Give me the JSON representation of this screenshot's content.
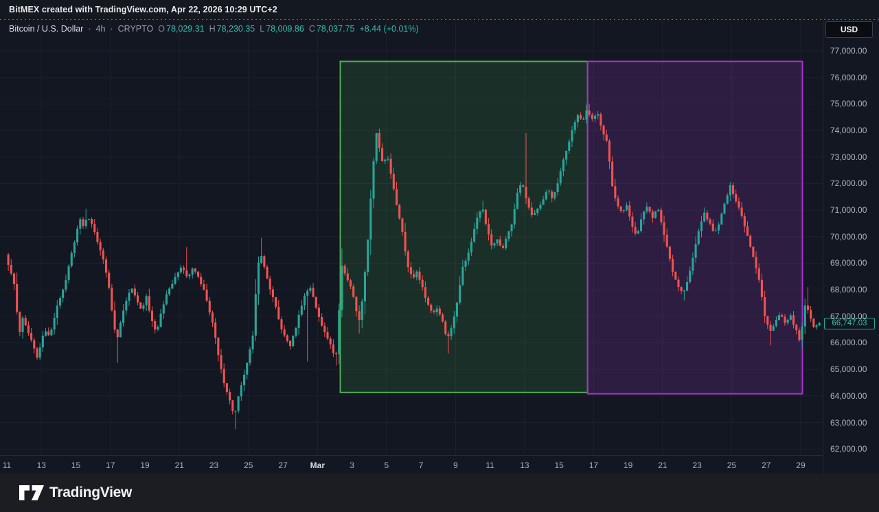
{
  "top_bar": {
    "attribution": "BitMEX created with TradingView.com, Apr 22, 2026 10:29 UTC+2"
  },
  "legend": {
    "symbol": "Bitcoin / U.S. Dollar",
    "sep1": "·",
    "interval": "4h",
    "sep2": "·",
    "market": "CRYPTO",
    "ohlc": {
      "o_label": "O",
      "o": "78,029.31",
      "h_label": "H",
      "h": "78,230.35",
      "l_label": "L",
      "l": "78,009.86",
      "c_label": "C",
      "c": "78,037.75",
      "change": "+8.44 (+0.01%)"
    }
  },
  "price_axis": {
    "currency": "USD",
    "last_price_label": "66,747.03",
    "tick_values": [
      77000,
      76000,
      75000,
      74000,
      73000,
      72000,
      71000,
      70000,
      69000,
      68000,
      67000,
      66000,
      65000,
      64000,
      63000,
      62000
    ],
    "tick_labels": [
      "77,000.00",
      "76,000.00",
      "75,000.00",
      "74,000.00",
      "73,000.00",
      "72,000.00",
      "71,000.00",
      "70,000.00",
      "69,000.00",
      "68,000.00",
      "67,000.00",
      "66,000.00",
      "65,000.00",
      "64,000.00",
      "63,000.00",
      "62,000.00"
    ]
  },
  "time_axis": {
    "labels": [
      {
        "text": "11",
        "day": 0
      },
      {
        "text": "13",
        "day": 2
      },
      {
        "text": "15",
        "day": 4
      },
      {
        "text": "17",
        "day": 6
      },
      {
        "text": "19",
        "day": 8
      },
      {
        "text": "21",
        "day": 10
      },
      {
        "text": "23",
        "day": 12
      },
      {
        "text": "25",
        "day": 14
      },
      {
        "text": "27",
        "day": 16
      },
      {
        "text": "Mar",
        "day": 18,
        "bold": true
      },
      {
        "text": "3",
        "day": 20
      },
      {
        "text": "5",
        "day": 22
      },
      {
        "text": "7",
        "day": 24
      },
      {
        "text": "9",
        "day": 26
      },
      {
        "text": "11",
        "day": 28
      },
      {
        "text": "13",
        "day": 30
      },
      {
        "text": "15",
        "day": 32
      },
      {
        "text": "17",
        "day": 34
      },
      {
        "text": "19",
        "day": 36
      },
      {
        "text": "21",
        "day": 38
      },
      {
        "text": "23",
        "day": 40
      },
      {
        "text": "25",
        "day": 42
      },
      {
        "text": "27",
        "day": 44
      },
      {
        "text": "29",
        "day": 46
      }
    ]
  },
  "footer": {
    "brand": "TradingView",
    "logo_icon": "tradingview-logo-icon"
  },
  "chart_data": {
    "type": "candlestick",
    "title": "Bitcoin / U.S. Dollar",
    "exchange": "BitMEX",
    "interval": "4h",
    "market": "CRYPTO",
    "x_axis": {
      "start": "Feb 11",
      "end": "Mar 30",
      "label_every_days": 2
    },
    "y_axis": {
      "tick_min": 62000,
      "tick_max": 77000,
      "tick_step": 1000,
      "visible_min": 61650,
      "visible_max": 77800
    },
    "grid": {
      "horizontal_step": 1000,
      "vertical_step_days": 4
    },
    "last_price": 66747.03,
    "colors": {
      "up": "#26a69a",
      "down": "#ef5350",
      "grid": "#1d212e",
      "background": "#131722",
      "accent": "#26a69a"
    },
    "candles_note": "283 four-hour candles generated deterministically from price_path anchors read off the chart",
    "price_path": [
      [
        0,
        69300
      ],
      [
        0.2,
        68900
      ],
      [
        0.5,
        68200
      ],
      [
        0.8,
        66300
      ],
      [
        1.0,
        66900
      ],
      [
        1.3,
        66400
      ],
      [
        1.6,
        65900
      ],
      [
        1.85,
        65400
      ],
      [
        2.05,
        66000
      ],
      [
        2.3,
        66500
      ],
      [
        2.55,
        66200
      ],
      [
        2.8,
        66900
      ],
      [
        3.1,
        67600
      ],
      [
        3.4,
        68100
      ],
      [
        3.7,
        69000
      ],
      [
        4.0,
        69800
      ],
      [
        4.3,
        70700
      ],
      [
        4.5,
        70400
      ],
      [
        4.75,
        70800
      ],
      [
        5.0,
        70500
      ],
      [
        5.3,
        69900
      ],
      [
        5.6,
        69300
      ],
      [
        5.9,
        68500
      ],
      [
        6.2,
        67100
      ],
      [
        6.45,
        66000
      ],
      [
        6.7,
        66900
      ],
      [
        7.0,
        67600
      ],
      [
        7.3,
        68100
      ],
      [
        7.6,
        67600
      ],
      [
        7.9,
        67200
      ],
      [
        8.15,
        67800
      ],
      [
        8.45,
        66900
      ],
      [
        8.75,
        66400
      ],
      [
        9.05,
        67200
      ],
      [
        9.35,
        67900
      ],
      [
        9.65,
        68200
      ],
      [
        9.95,
        68600
      ],
      [
        10.25,
        68900
      ],
      [
        10.55,
        68400
      ],
      [
        10.85,
        68800
      ],
      [
        11.15,
        68500
      ],
      [
        11.5,
        68000
      ],
      [
        11.8,
        67200
      ],
      [
        12.1,
        66500
      ],
      [
        12.4,
        65300
      ],
      [
        12.7,
        64400
      ],
      [
        13.0,
        63800
      ],
      [
        13.25,
        63200
      ],
      [
        13.55,
        64100
      ],
      [
        13.85,
        64800
      ],
      [
        14.1,
        65600
      ],
      [
        14.35,
        66300
      ],
      [
        14.6,
        68800
      ],
      [
        14.8,
        69400
      ],
      [
        15.05,
        68700
      ],
      [
        15.3,
        68100
      ],
      [
        15.6,
        67500
      ],
      [
        15.9,
        66700
      ],
      [
        16.2,
        66200
      ],
      [
        16.5,
        65900
      ],
      [
        16.8,
        66500
      ],
      [
        17.1,
        67300
      ],
      [
        17.4,
        67900
      ],
      [
        17.7,
        68100
      ],
      [
        18.0,
        67300
      ],
      [
        18.3,
        66700
      ],
      [
        18.6,
        66300
      ],
      [
        18.9,
        65800
      ],
      [
        19.15,
        65400
      ],
      [
        19.5,
        68900
      ],
      [
        19.75,
        68500
      ],
      [
        20.0,
        68100
      ],
      [
        20.2,
        67700
      ],
      [
        20.45,
        66700
      ],
      [
        20.7,
        67700
      ],
      [
        21.0,
        69900
      ],
      [
        21.3,
        72600
      ],
      [
        21.5,
        73900
      ],
      [
        21.7,
        73200
      ],
      [
        21.9,
        72600
      ],
      [
        22.1,
        73200
      ],
      [
        22.4,
        72100
      ],
      [
        22.7,
        71100
      ],
      [
        23.0,
        70200
      ],
      [
        23.3,
        68900
      ],
      [
        23.6,
        68400
      ],
      [
        23.85,
        68700
      ],
      [
        24.15,
        68100
      ],
      [
        24.45,
        67500
      ],
      [
        24.75,
        67100
      ],
      [
        25.0,
        67300
      ],
      [
        25.3,
        66900
      ],
      [
        25.6,
        66100
      ],
      [
        25.9,
        66700
      ],
      [
        26.2,
        67600
      ],
      [
        26.5,
        68900
      ],
      [
        26.8,
        69300
      ],
      [
        27.1,
        70100
      ],
      [
        27.4,
        70900
      ],
      [
        27.65,
        71100
      ],
      [
        27.9,
        70300
      ],
      [
        28.2,
        69600
      ],
      [
        28.5,
        69900
      ],
      [
        28.8,
        69500
      ],
      [
        29.1,
        70100
      ],
      [
        29.4,
        70600
      ],
      [
        29.7,
        71800
      ],
      [
        29.95,
        72000
      ],
      [
        30.2,
        71400
      ],
      [
        30.5,
        70800
      ],
      [
        30.8,
        71000
      ],
      [
        31.1,
        71300
      ],
      [
        31.4,
        71800
      ],
      [
        31.7,
        71400
      ],
      [
        32.0,
        72000
      ],
      [
        32.3,
        72800
      ],
      [
        32.6,
        73400
      ],
      [
        32.9,
        74200
      ],
      [
        33.2,
        74600
      ],
      [
        33.45,
        74300
      ],
      [
        33.7,
        74800
      ],
      [
        34.0,
        74400
      ],
      [
        34.3,
        74700
      ],
      [
        34.6,
        73900
      ],
      [
        34.9,
        73500
      ],
      [
        35.1,
        72100
      ],
      [
        35.4,
        71300
      ],
      [
        35.7,
        70900
      ],
      [
        36.0,
        71200
      ],
      [
        36.3,
        70400
      ],
      [
        36.6,
        70000
      ],
      [
        36.9,
        70800
      ],
      [
        37.2,
        71200
      ],
      [
        37.5,
        70700
      ],
      [
        37.8,
        71100
      ],
      [
        38.1,
        70300
      ],
      [
        38.4,
        69400
      ],
      [
        38.7,
        68600
      ],
      [
        39.0,
        68100
      ],
      [
        39.3,
        67900
      ],
      [
        39.6,
        68500
      ],
      [
        39.9,
        69400
      ],
      [
        40.2,
        70300
      ],
      [
        40.5,
        70900
      ],
      [
        40.8,
        70500
      ],
      [
        41.1,
        70100
      ],
      [
        41.4,
        70600
      ],
      [
        41.7,
        71300
      ],
      [
        42.0,
        71900
      ],
      [
        42.25,
        71500
      ],
      [
        42.5,
        71100
      ],
      [
        42.8,
        70500
      ],
      [
        43.1,
        69800
      ],
      [
        43.4,
        69100
      ],
      [
        43.7,
        68300
      ],
      [
        44.0,
        67000
      ],
      [
        44.3,
        66400
      ],
      [
        44.6,
        66800
      ],
      [
        44.9,
        67100
      ],
      [
        45.2,
        66700
      ],
      [
        45.5,
        67000
      ],
      [
        45.8,
        66500
      ],
      [
        46.05,
        66000
      ],
      [
        46.35,
        67500
      ],
      [
        46.6,
        67000
      ],
      [
        46.85,
        66600
      ],
      [
        47.1,
        66747
      ]
    ],
    "wick_events": [
      {
        "t": 4.5,
        "high": 71050
      },
      {
        "t": 6.45,
        "low": 65250
      },
      {
        "t": 10.4,
        "high": 69600
      },
      {
        "t": 13.25,
        "low": 62750
      },
      {
        "t": 14.7,
        "high": 69950
      },
      {
        "t": 17.35,
        "low": 65300
      },
      {
        "t": 19.1,
        "low": 65150
      },
      {
        "t": 20.45,
        "low": 66350
      },
      {
        "t": 21.5,
        "high": 74050
      },
      {
        "t": 25.6,
        "low": 65600
      },
      {
        "t": 27.5,
        "high": 71350
      },
      {
        "t": 30.1,
        "high": 73900
      },
      {
        "t": 33.7,
        "high": 75000
      },
      {
        "t": 39.3,
        "low": 67600
      },
      {
        "t": 42.0,
        "high": 72050
      },
      {
        "t": 44.3,
        "low": 65900
      },
      {
        "t": 46.05,
        "low": 65750
      },
      {
        "t": 46.35,
        "high": 68100
      }
    ],
    "boxes": [
      {
        "name": "green-highlight-box",
        "day_start": 19.32,
        "day_end": 33.65,
        "price_top": 76600,
        "price_bottom": 64130,
        "border_color": "#4caf50",
        "fill_color": "rgba(76,175,80,0.16)"
      },
      {
        "name": "purple-highlight-box",
        "day_start": 33.65,
        "day_end": 46.1,
        "price_top": 76600,
        "price_bottom": 64080,
        "border_color": "#a832c9",
        "fill_color": "rgba(168,60,210,0.18)"
      }
    ]
  }
}
